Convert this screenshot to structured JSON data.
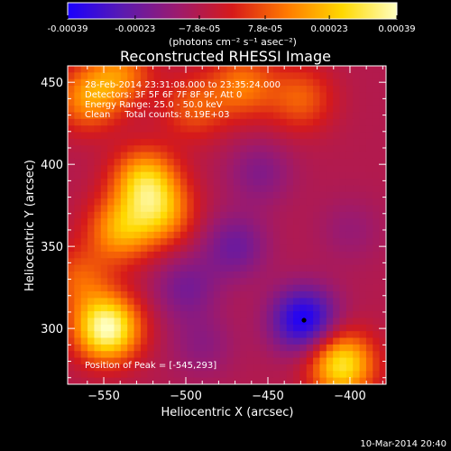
{
  "chart_data": {
    "type": "heatmap",
    "title": "Reconstructed RHESSI Image",
    "xlabel": "Heliocentric X (arcsec)",
    "ylabel": "Heliocentric Y (arcsec)",
    "xlim": [
      -572,
      -378
    ],
    "ylim": [
      266,
      460
    ],
    "x_ticks": [
      -550,
      -500,
      -450,
      -400
    ],
    "y_ticks": [
      300,
      350,
      400,
      450
    ],
    "colorbar": {
      "ticks": [
        "-0.00039",
        "-0.00023",
        "−7.8e-05",
        "7.8e-05",
        "0.00023",
        "0.00039"
      ],
      "tick_values": [
        -0.00039,
        -0.00023,
        -7.8e-05,
        7.8e-05,
        0.00023,
        0.00039
      ],
      "range": [
        -0.00039,
        0.00039
      ],
      "unit_label": "(photons cm⁻² s⁻¹ asec⁻²)",
      "colors": [
        "#1a00ff",
        "#5a1ab0",
        "#9c1a6e",
        "#d61a1a",
        "#ff7a00",
        "#ffd800",
        "#ffffc0"
      ]
    },
    "annotations": [
      "28-Feb-2014 23:31:08.000 to 23:35:24.000",
      "Detectors: 3F 5F 6F 7F 8F 9F, Att 0",
      "Energy Range: 25.0 - 50.0 keV",
      "Clean     Total counts: 8.19E+03"
    ],
    "peak_label": "Position of Peak = [-545,293]",
    "peak": [
      -545,
      293
    ],
    "marker": [
      -428,
      305
    ],
    "features": [
      {
        "x": -548,
        "y": 300,
        "value": 0.00039
      },
      {
        "x": -405,
        "y": 278,
        "value": 0.0003
      },
      {
        "x": -525,
        "y": 390,
        "value": 0.00023
      },
      {
        "x": -540,
        "y": 360,
        "value": 0.00018
      },
      {
        "x": -515,
        "y": 370,
        "value": 0.00016
      },
      {
        "x": -465,
        "y": 448,
        "value": 0.00012
      },
      {
        "x": -430,
        "y": 440,
        "value": 9e-05
      },
      {
        "x": -495,
        "y": 435,
        "value": 8e-05
      },
      {
        "x": -560,
        "y": 440,
        "value": 0.00015
      },
      {
        "x": -540,
        "y": 455,
        "value": 0.00012
      },
      {
        "x": -565,
        "y": 330,
        "value": 8e-05
      },
      {
        "x": -428,
        "y": 305,
        "value": -0.00039
      },
      {
        "x": -470,
        "y": 350,
        "value": -0.00022
      },
      {
        "x": -500,
        "y": 325,
        "value": -0.0002
      },
      {
        "x": -455,
        "y": 395,
        "value": -0.00018
      },
      {
        "x": -490,
        "y": 290,
        "value": -0.00016
      },
      {
        "x": -400,
        "y": 360,
        "value": -0.00014
      }
    ],
    "background_value": -8e-05,
    "footer": "10-Mar-2014 20:40"
  }
}
